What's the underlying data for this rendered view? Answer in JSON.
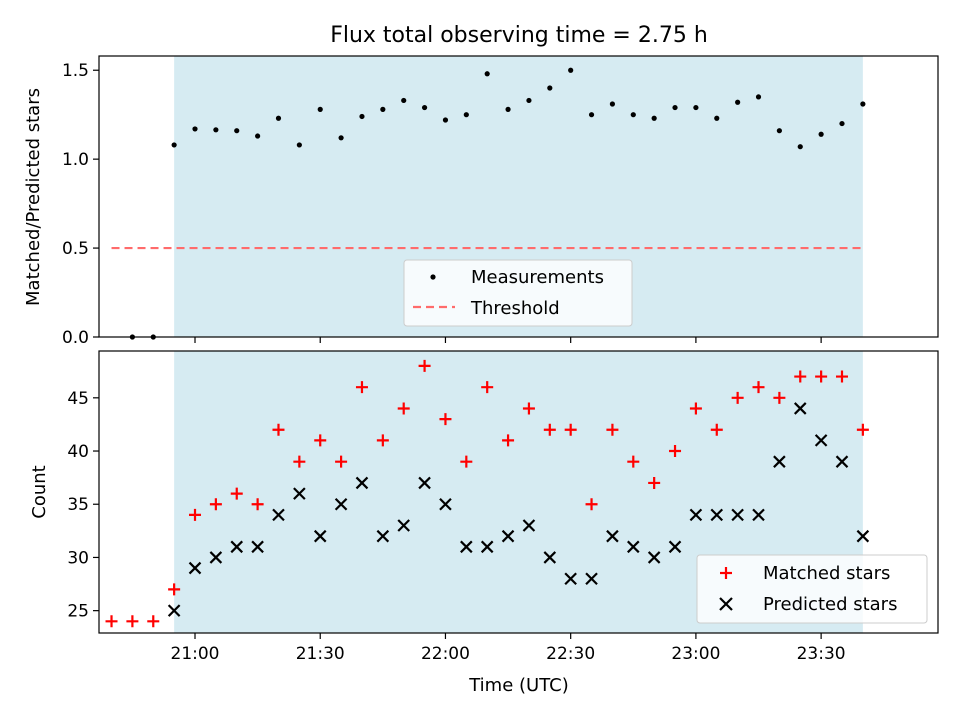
{
  "title": "Flux total observing time = 2.75 h",
  "colors": {
    "shade": "#add8e6",
    "measurement": "#000000",
    "threshold": "#ff6b6b",
    "matched": "#ff0000",
    "predicted": "#000000"
  },
  "chart_data": [
    {
      "type": "scatter",
      "ylabel": "Matched/Predicted stars",
      "ylim": [
        0,
        1.58
      ],
      "yticks": [
        "0.0",
        "0.5",
        "1.0",
        "1.5"
      ],
      "xlim": [
        "20:37",
        "23:58"
      ],
      "shaded_interval": [
        "20:55",
        "23:40"
      ],
      "grid": false,
      "legend_position": "lower-center",
      "series": [
        {
          "name": "Measurements",
          "marker": "dot",
          "x": [
            "20:45",
            "20:50",
            "20:55",
            "21:00",
            "21:05",
            "21:10",
            "21:15",
            "21:20",
            "21:25",
            "21:30",
            "21:35",
            "21:40",
            "21:45",
            "21:50",
            "21:55",
            "22:00",
            "22:05",
            "22:10",
            "22:15",
            "22:20",
            "22:25",
            "22:30",
            "22:35",
            "22:40",
            "22:45",
            "22:50",
            "22:55",
            "23:00",
            "23:05",
            "23:10",
            "23:15",
            "23:20",
            "23:25",
            "23:30",
            "23:35",
            "23:40"
          ],
          "y": [
            0.0,
            0.0,
            1.08,
            1.17,
            1.165,
            1.16,
            1.13,
            1.23,
            1.08,
            1.28,
            1.12,
            1.24,
            1.28,
            1.33,
            1.29,
            1.22,
            1.25,
            1.48,
            1.28,
            1.33,
            1.4,
            1.5,
            1.25,
            1.31,
            1.25,
            1.23,
            1.29,
            1.29,
            1.23,
            1.32,
            1.35,
            1.16,
            1.07,
            1.14,
            1.2,
            1.31
          ]
        },
        {
          "name": "Threshold",
          "marker": "dashed-line",
          "x": [
            "20:40",
            "23:40"
          ],
          "y": [
            0.5,
            0.5
          ]
        }
      ]
    },
    {
      "type": "scatter",
      "xlabel": "Time (UTC)",
      "ylabel": "Count",
      "ylim": [
        22.9,
        49.4
      ],
      "yticks": [
        "25",
        "30",
        "35",
        "40",
        "45"
      ],
      "xticks": [
        "21:00",
        "21:30",
        "22:00",
        "22:30",
        "23:00",
        "23:30"
      ],
      "xlim": [
        "20:37",
        "23:58"
      ],
      "shaded_interval": [
        "20:55",
        "23:40"
      ],
      "grid": false,
      "legend_position": "lower-right",
      "series": [
        {
          "name": "Matched stars",
          "marker": "plus",
          "x": [
            "20:40",
            "20:45",
            "20:50",
            "20:55",
            "21:00",
            "21:05",
            "21:10",
            "21:15",
            "21:20",
            "21:25",
            "21:30",
            "21:35",
            "21:40",
            "21:45",
            "21:50",
            "21:55",
            "22:00",
            "22:05",
            "22:10",
            "22:15",
            "22:20",
            "22:25",
            "22:30",
            "22:35",
            "22:40",
            "22:45",
            "22:50",
            "22:55",
            "23:00",
            "23:05",
            "23:10",
            "23:15",
            "23:20",
            "23:25",
            "23:30",
            "23:35",
            "23:40"
          ],
          "y": [
            24,
            24,
            24,
            27,
            34,
            35,
            36,
            35,
            42,
            39,
            41,
            39,
            46,
            41,
            44,
            48,
            43,
            39,
            46,
            41,
            44,
            42,
            42,
            35,
            42,
            39,
            37,
            40,
            44,
            42,
            45,
            46,
            45,
            47,
            47,
            47,
            42
          ]
        },
        {
          "name": "Predicted stars",
          "marker": "x",
          "x": [
            "20:55",
            "21:00",
            "21:05",
            "21:10",
            "21:15",
            "21:20",
            "21:25",
            "21:30",
            "21:35",
            "21:40",
            "21:45",
            "21:50",
            "21:55",
            "22:00",
            "22:05",
            "22:10",
            "22:15",
            "22:20",
            "22:25",
            "22:30",
            "22:35",
            "22:40",
            "22:45",
            "22:50",
            "22:55",
            "23:00",
            "23:05",
            "23:10",
            "23:15",
            "23:20",
            "23:25",
            "23:30",
            "23:35",
            "23:40"
          ],
          "y": [
            25,
            29,
            30,
            31,
            31,
            34,
            36,
            32,
            35,
            37,
            32,
            33,
            37,
            35,
            31,
            31,
            32,
            33,
            30,
            28,
            28,
            32,
            31,
            30,
            31,
            34,
            34,
            34,
            34,
            39,
            44,
            41,
            39,
            32
          ]
        }
      ]
    }
  ]
}
